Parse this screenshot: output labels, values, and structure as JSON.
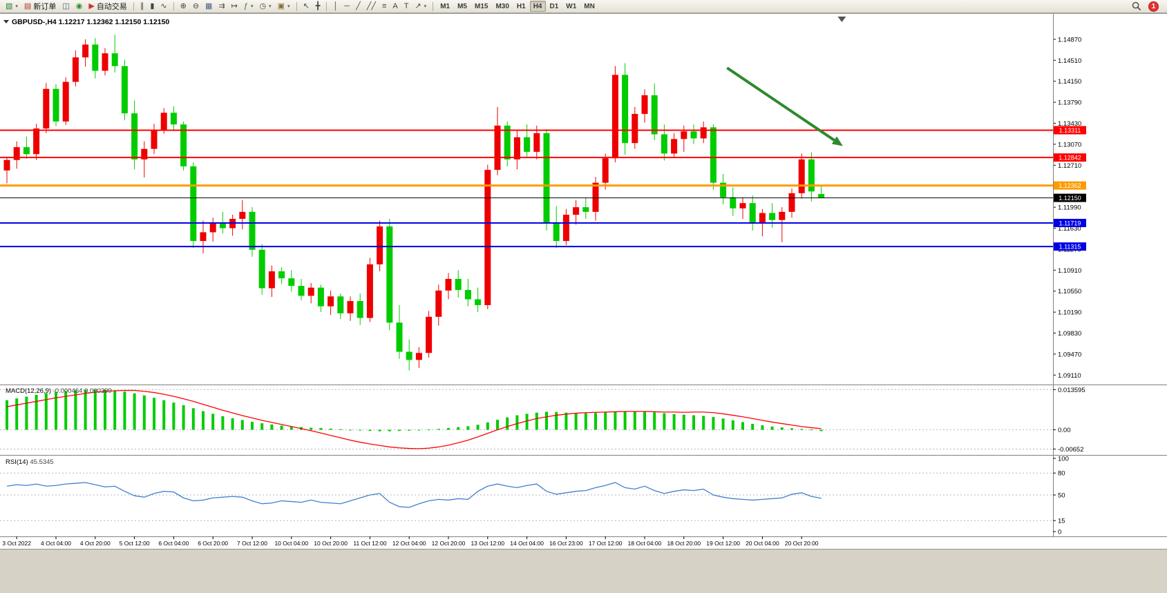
{
  "toolbar": {
    "groups": [
      [
        {
          "name": "new-chart-button",
          "icon": "new-chart-icon",
          "glyph": "▧",
          "color": "#2e7d32",
          "dropdown": true
        },
        {
          "name": "new-order-button",
          "icon": "new-order-icon",
          "glyph": "▤",
          "color": "#b03a2e",
          "label": "新订单"
        },
        {
          "name": "profiles-button",
          "icon": "profiles-icon",
          "glyph": "◫",
          "color": "#46648c"
        },
        {
          "name": "refresh-button",
          "icon": "refresh-icon",
          "glyph": "◉",
          "color": "#2e8b2e"
        },
        {
          "name": "autotrading-button",
          "icon": "autotrading-play-icon",
          "glyph": "▶",
          "color": "#c0392b",
          "label": "自动交易"
        }
      ],
      [
        {
          "name": "bar-chart-button",
          "icon": "ohlc-bars-icon",
          "glyph": "∥",
          "color": "#444444"
        },
        {
          "name": "candlestick-button",
          "icon": "candlestick-icon",
          "glyph": "▮",
          "color": "#444444"
        },
        {
          "name": "line-chart-button",
          "icon": "line-chart-icon",
          "glyph": "∿",
          "color": "#444444"
        }
      ],
      [
        {
          "name": "zoom-in-button",
          "icon": "zoom-in-icon",
          "glyph": "⊕",
          "color": "#444444"
        },
        {
          "name": "zoom-out-button",
          "icon": "zoom-out-icon",
          "glyph": "⊖",
          "color": "#444444"
        },
        {
          "name": "tile-windows-button",
          "icon": "tile-windows-icon",
          "glyph": "▦",
          "color": "#46648c"
        },
        {
          "name": "auto-scroll-button",
          "icon": "auto-scroll-icon",
          "glyph": "⇉",
          "color": "#444444"
        },
        {
          "name": "chart-shift-button",
          "icon": "chart-shift-icon",
          "glyph": "↦",
          "color": "#444444"
        },
        {
          "name": "indicators-button",
          "icon": "indicators-icon",
          "glyph": "ƒ",
          "color": "#2e7d32",
          "dropdown": true
        },
        {
          "name": "periods-button",
          "icon": "clock-icon",
          "glyph": "◷",
          "color": "#444444",
          "dropdown": true
        },
        {
          "name": "templates-button",
          "icon": "template-icon",
          "glyph": "▣",
          "color": "#8a6d3b",
          "dropdown": true
        }
      ],
      [
        {
          "name": "cursor-button",
          "icon": "cursor-icon",
          "glyph": "↖",
          "color": "#444444"
        },
        {
          "name": "crosshair-button",
          "icon": "crosshair-icon",
          "glyph": "╋",
          "color": "#444444"
        }
      ],
      [
        {
          "name": "vertical-line-button",
          "icon": "vertical-line-icon",
          "glyph": "│",
          "color": "#444444"
        },
        {
          "name": "horizontal-line-button",
          "icon": "horizontal-line-icon",
          "glyph": "─",
          "color": "#444444"
        },
        {
          "name": "trendline-button",
          "icon": "trendline-icon",
          "glyph": "╱",
          "color": "#444444"
        },
        {
          "name": "channel-button",
          "icon": "channel-icon",
          "glyph": "╱╱",
          "color": "#444444"
        },
        {
          "name": "fibonacci-button",
          "icon": "fibonacci-icon",
          "glyph": "≡",
          "color": "#444444"
        },
        {
          "name": "text-button",
          "icon": "text-icon",
          "glyph": "A",
          "color": "#444444"
        },
        {
          "name": "text-label-button",
          "icon": "text-label-icon",
          "glyph": "T",
          "color": "#444444"
        },
        {
          "name": "arrows-button",
          "icon": "arrow-object-icon",
          "glyph": "↗",
          "color": "#444444",
          "dropdown": true
        }
      ]
    ],
    "timeframes": {
      "items": [
        "M1",
        "M5",
        "M15",
        "M30",
        "H1",
        "H4",
        "D1",
        "W1",
        "MN"
      ],
      "active": "H4"
    },
    "notification_badge": "1"
  },
  "chart_data": {
    "type": "candlestick",
    "title": "GBPUSD-,H4",
    "ohlc_display": "1.12217 1.12362 1.12150 1.12150",
    "price_axis": {
      "range": [
        1.0896,
        1.1526
      ],
      "top_tick": 1.1487,
      "bottom_tick": 1.0911,
      "step": 0.0036,
      "decimals": 5
    },
    "colors": {
      "up": "#ee0000",
      "down": "#00cc00"
    },
    "candles": [
      [
        1.1262,
        1.1285,
        1.124,
        1.128
      ],
      [
        1.128,
        1.1312,
        1.1265,
        1.1302
      ],
      [
        1.1302,
        1.132,
        1.1282,
        1.129
      ],
      [
        1.129,
        1.1342,
        1.128,
        1.1334
      ],
      [
        1.1334,
        1.1412,
        1.1326,
        1.1402
      ],
      [
        1.1402,
        1.141,
        1.1338,
        1.1346
      ],
      [
        1.1346,
        1.1422,
        1.134,
        1.1414
      ],
      [
        1.1414,
        1.1468,
        1.1406,
        1.1456
      ],
      [
        1.1456,
        1.1487,
        1.144,
        1.1478
      ],
      [
        1.1478,
        1.1489,
        1.142,
        1.1433
      ],
      [
        1.1433,
        1.1472,
        1.1425,
        1.1463
      ],
      [
        1.1463,
        1.1495,
        1.143,
        1.1441
      ],
      [
        1.1441,
        1.1452,
        1.1348,
        1.136
      ],
      [
        1.136,
        1.1382,
        1.1264,
        1.1281
      ],
      [
        1.1281,
        1.1312,
        1.125,
        1.1299
      ],
      [
        1.1299,
        1.1342,
        1.129,
        1.1331
      ],
      [
        1.1331,
        1.1369,
        1.1325,
        1.1361
      ],
      [
        1.1361,
        1.1372,
        1.133,
        1.1341
      ],
      [
        1.1341,
        1.1346,
        1.1262,
        1.1269
      ],
      [
        1.1269,
        1.1276,
        1.1129,
        1.1141
      ],
      [
        1.1141,
        1.1176,
        1.112,
        1.1156
      ],
      [
        1.1156,
        1.1181,
        1.114,
        1.1171
      ],
      [
        1.1171,
        1.1191,
        1.1154,
        1.1163
      ],
      [
        1.1163,
        1.1186,
        1.115,
        1.1179
      ],
      [
        1.1179,
        1.1211,
        1.1161,
        1.1191
      ],
      [
        1.1191,
        1.1199,
        1.1114,
        1.1126
      ],
      [
        1.1126,
        1.1136,
        1.1049,
        1.106
      ],
      [
        1.106,
        1.1099,
        1.1045,
        1.1089
      ],
      [
        1.1089,
        1.1096,
        1.1067,
        1.1077
      ],
      [
        1.1077,
        1.1091,
        1.1054,
        1.1064
      ],
      [
        1.1064,
        1.1076,
        1.1039,
        1.1047
      ],
      [
        1.1047,
        1.1069,
        1.1034,
        1.1061
      ],
      [
        1.1061,
        1.1066,
        1.1019,
        1.1029
      ],
      [
        1.1029,
        1.1056,
        1.1014,
        1.1046
      ],
      [
        1.1046,
        1.1051,
        1.1007,
        1.1017
      ],
      [
        1.1017,
        1.1046,
        1.1004,
        1.1038
      ],
      [
        1.1038,
        1.1051,
        1.0997,
        1.1009
      ],
      [
        1.1009,
        1.1112,
        1.1002,
        1.1101
      ],
      [
        1.1101,
        1.1176,
        1.1089,
        1.1166
      ],
      [
        1.1166,
        1.1179,
        1.0988,
        1.1001
      ],
      [
        1.1001,
        1.1031,
        1.0939,
        1.0951
      ],
      [
        1.0951,
        1.0972,
        1.0919,
        1.0937
      ],
      [
        1.0937,
        1.0959,
        1.0923,
        1.0949
      ],
      [
        1.0949,
        1.1021,
        1.0941,
        1.1011
      ],
      [
        1.1011,
        1.1066,
        1.0996,
        1.1056
      ],
      [
        1.1056,
        1.1086,
        1.1041,
        1.1076
      ],
      [
        1.1076,
        1.1091,
        1.1044,
        1.1057
      ],
      [
        1.1057,
        1.1076,
        1.1029,
        1.1041
      ],
      [
        1.1041,
        1.1061,
        1.1019,
        1.1031
      ],
      [
        1.1031,
        1.1272,
        1.1024,
        1.1263
      ],
      [
        1.1263,
        1.1371,
        1.1254,
        1.1339
      ],
      [
        1.1339,
        1.1346,
        1.1269,
        1.1281
      ],
      [
        1.1281,
        1.1331,
        1.1264,
        1.1319
      ],
      [
        1.1319,
        1.1341,
        1.1284,
        1.1294
      ],
      [
        1.1294,
        1.1339,
        1.1281,
        1.1326
      ],
      [
        1.1326,
        1.1333,
        1.1159,
        1.1171
      ],
      [
        1.1171,
        1.1201,
        1.1129,
        1.1141
      ],
      [
        1.1141,
        1.1196,
        1.1134,
        1.1186
      ],
      [
        1.1186,
        1.1211,
        1.1169,
        1.1199
      ],
      [
        1.1199,
        1.1216,
        1.1179,
        1.1191
      ],
      [
        1.1191,
        1.1251,
        1.1176,
        1.1241
      ],
      [
        1.1241,
        1.1291,
        1.1229,
        1.1283
      ],
      [
        1.1283,
        1.1441,
        1.1276,
        1.1426
      ],
      [
        1.1426,
        1.1446,
        1.1289,
        1.1309
      ],
      [
        1.1309,
        1.1371,
        1.1299,
        1.1359
      ],
      [
        1.1359,
        1.1401,
        1.1344,
        1.1391
      ],
      [
        1.1391,
        1.1411,
        1.1314,
        1.1324
      ],
      [
        1.1324,
        1.1341,
        1.1279,
        1.1291
      ],
      [
        1.1291,
        1.1326,
        1.1284,
        1.1316
      ],
      [
        1.1316,
        1.1339,
        1.1294,
        1.1329
      ],
      [
        1.1329,
        1.1341,
        1.1307,
        1.1317
      ],
      [
        1.1317,
        1.1346,
        1.1309,
        1.1336
      ],
      [
        1.1336,
        1.1341,
        1.1229,
        1.1241
      ],
      [
        1.1241,
        1.1256,
        1.1204,
        1.1216
      ],
      [
        1.1216,
        1.1233,
        1.1184,
        1.1197
      ],
      [
        1.1197,
        1.1216,
        1.1179,
        1.1206
      ],
      [
        1.1206,
        1.1219,
        1.1159,
        1.1171
      ],
      [
        1.1171,
        1.1196,
        1.1149,
        1.1189
      ],
      [
        1.1189,
        1.1206,
        1.1164,
        1.1177
      ],
      [
        1.1177,
        1.1199,
        1.1139,
        1.1191
      ],
      [
        1.1191,
        1.1231,
        1.1181,
        1.1223
      ],
      [
        1.1223,
        1.1291,
        1.1214,
        1.1281
      ],
      [
        1.1281,
        1.1293,
        1.1209,
        1.1226
      ],
      [
        1.12217,
        1.12362,
        1.1215,
        1.1215
      ]
    ],
    "hlines": [
      {
        "name": "resistance-line-1",
        "price": 1.13311,
        "label": "1.13311",
        "color": "#ff0000",
        "width": 2
      },
      {
        "name": "resistance-line-2",
        "price": 1.12842,
        "label": "1.12842",
        "color": "#ff0000",
        "width": 2
      },
      {
        "name": "pivot-line",
        "price": 1.12362,
        "label": "1.12362",
        "color": "#ff9c00",
        "width": 3
      },
      {
        "name": "bid-price-line",
        "price": 1.1215,
        "label": "1.12150",
        "color": "#000000",
        "width": 1
      },
      {
        "name": "support-line-1",
        "price": 1.11719,
        "label": "1.11719",
        "color": "#0000e6",
        "width": 2
      },
      {
        "name": "support-line-2",
        "price": 1.11315,
        "label": "1.11315",
        "color": "#0000e6",
        "width": 2
      }
    ],
    "time_labels": [
      "3 Oct 2022",
      "4 Oct 04:00",
      "4 Oct 20:00",
      "5 Oct 12:00",
      "6 Oct 04:00",
      "6 Oct 20:00",
      "7 Oct 12:00",
      "10 Oct 04:00",
      "10 Oct 20:00",
      "11 Oct 12:00",
      "12 Oct 04:00",
      "12 Oct 20:00",
      "13 Oct 12:00",
      "14 Oct 04:00",
      "16 Oct 23:00",
      "17 Oct 12:00",
      "18 Oct 04:00",
      "18 Oct 20:00",
      "19 Oct 12:00",
      "20 Oct 04:00",
      "20 Oct 20:00"
    ],
    "arrow": {
      "from_bar": 73.4,
      "from_price": 1.1438,
      "to_bar": 85.2,
      "to_price": 1.1304,
      "color": "#2d8a2d"
    },
    "shift_marker_bar": 85.1,
    "indicators": {
      "macd": {
        "label": "MACD(12,26,9)",
        "values_display": "-0.000464 0.000399",
        "range": [
          -0.0078,
          0.0146
        ],
        "ticks": [
          {
            "value": 0.013595,
            "label": "0.013595"
          },
          {
            "value": 0,
            "label": "0.00"
          },
          {
            "value": -0.00652,
            "label": "-0.00652"
          }
        ],
        "colors": {
          "histogram": "#00cc00",
          "signal": "#ff0000"
        },
        "histogram": [
          0.01,
          0.0106,
          0.0112,
          0.0118,
          0.0124,
          0.0128,
          0.0131,
          0.0133,
          0.0135,
          0.0136,
          0.0135,
          0.0133,
          0.0129,
          0.0123,
          0.0116,
          0.0108,
          0.01,
          0.0092,
          0.0083,
          0.0073,
          0.0063,
          0.0054,
          0.0046,
          0.0039,
          0.0033,
          0.0027,
          0.0022,
          0.0018,
          0.0014,
          0.0011,
          0.0009,
          0.0007,
          0.0006,
          0.0004,
          0.0002,
          0.0,
          -0.0002,
          -0.0004,
          -0.0005,
          -0.0005,
          -0.0004,
          -0.0003,
          -0.0001,
          0.0001,
          0.0003,
          0.0006,
          0.0009,
          0.0012,
          0.0017,
          0.0025,
          0.0034,
          0.0042,
          0.0049,
          0.0054,
          0.0058,
          0.0061,
          0.006,
          0.0058,
          0.0057,
          0.0056,
          0.0057,
          0.0059,
          0.0062,
          0.0063,
          0.0062,
          0.0061,
          0.0059,
          0.0056,
          0.0053,
          0.0051,
          0.0049,
          0.0047,
          0.0043,
          0.0038,
          0.0032,
          0.0026,
          0.002,
          0.0015,
          0.0011,
          0.0008,
          0.0005,
          0.0003,
          0.0001,
          -0.000464
        ],
        "signal": [
          0.0078,
          0.0084,
          0.009,
          0.0096,
          0.0102,
          0.0108,
          0.0113,
          0.0118,
          0.0123,
          0.0127,
          0.013,
          0.0132,
          0.0133,
          0.0133,
          0.013,
          0.0126,
          0.012,
          0.0113,
          0.0105,
          0.0096,
          0.0086,
          0.0076,
          0.0066,
          0.0057,
          0.0048,
          0.004,
          0.0032,
          0.0025,
          0.0018,
          0.0011,
          0.0004,
          -0.0003,
          -0.0011,
          -0.0019,
          -0.0027,
          -0.0035,
          -0.0042,
          -0.0048,
          -0.0053,
          -0.0058,
          -0.0061,
          -0.0063,
          -0.0064,
          -0.0062,
          -0.0058,
          -0.0052,
          -0.0044,
          -0.0035,
          -0.0024,
          -0.0012,
          0.0,
          0.0011,
          0.0021,
          0.003,
          0.0038,
          0.0044,
          0.0049,
          0.0053,
          0.0056,
          0.0058,
          0.0059,
          0.006,
          0.0061,
          0.0062,
          0.0062,
          0.0062,
          0.0061,
          0.006,
          0.006,
          0.0059,
          0.006,
          0.006,
          0.0058,
          0.0054,
          0.0049,
          0.0044,
          0.0038,
          0.0032,
          0.0026,
          0.0021,
          0.0016,
          0.0011,
          0.0007,
          0.000399
        ]
      },
      "rsi": {
        "label": "RSI(14)",
        "value_display": "45.5345",
        "range": [
          0,
          100
        ],
        "levels": [
          80,
          50,
          15
        ],
        "ticks": [
          {
            "value": 100,
            "label": "100"
          },
          {
            "value": 80,
            "label": "80"
          },
          {
            "value": 50,
            "label": "50"
          },
          {
            "value": 15,
            "label": "15"
          },
          {
            "value": 0,
            "label": "0"
          }
        ],
        "color": "#3f7fce",
        "values": [
          62,
          64,
          63,
          65,
          62,
          63,
          65,
          66,
          67,
          64,
          61,
          62,
          55,
          49,
          47,
          52,
          55,
          54,
          46,
          42,
          43,
          46,
          47,
          48,
          47,
          42,
          38,
          39,
          42,
          41,
          40,
          43,
          40,
          39,
          38,
          42,
          46,
          50,
          52,
          40,
          34,
          33,
          38,
          42,
          44,
          43,
          45,
          44,
          55,
          62,
          65,
          62,
          60,
          63,
          65,
          55,
          51,
          53,
          55,
          56,
          60,
          63,
          67,
          60,
          58,
          62,
          56,
          52,
          55,
          57,
          56,
          58,
          50,
          47,
          45,
          44,
          43,
          44,
          45,
          46,
          51,
          53,
          48,
          45.5345
        ]
      }
    }
  }
}
